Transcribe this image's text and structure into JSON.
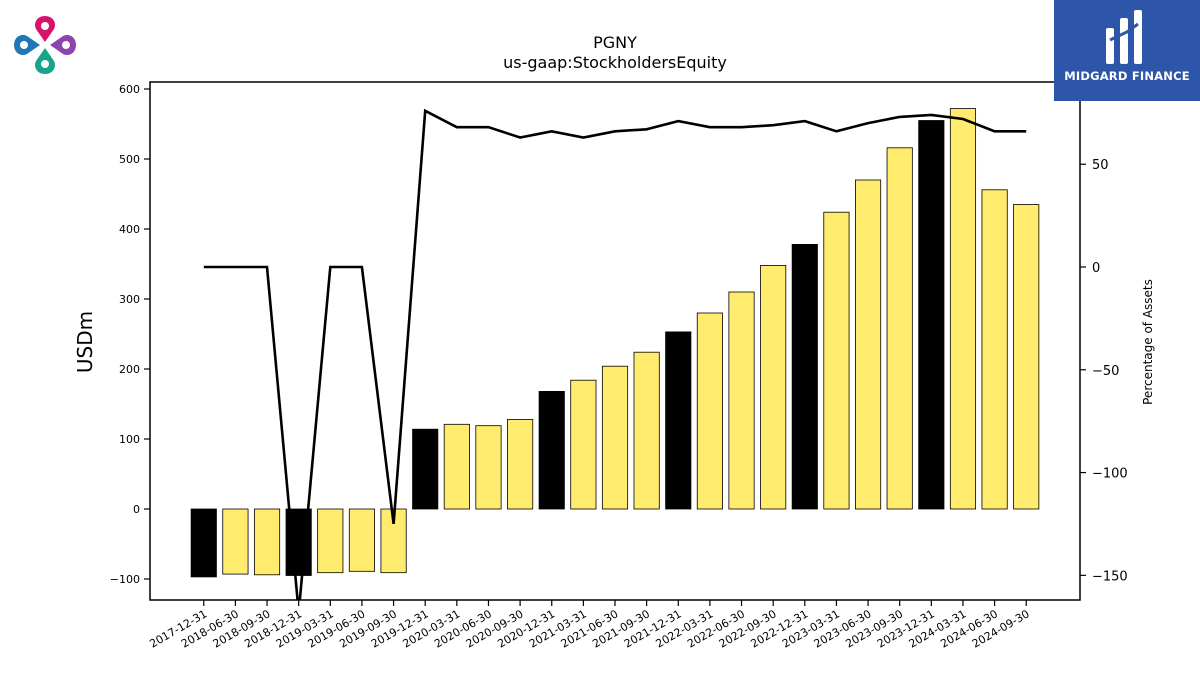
{
  "brand": {
    "name": "MIDGARD FINANCE",
    "colors": {
      "background": "#2d55a8",
      "mark": "#ffffff"
    }
  },
  "logo": {
    "name": "clover-logo",
    "colors": [
      "#d6146b",
      "#8e44ad",
      "#17a589",
      "#1f77b4"
    ]
  },
  "chart_data": {
    "type": "bar",
    "title": "PGNY",
    "subtitle": "us-gaap:StockholdersEquity",
    "ylabel": "USDm",
    "y2label": "Percentage of Assets",
    "ylim": [
      -130,
      610
    ],
    "y2lim": [
      -162,
      90
    ],
    "yticks": [
      -100,
      0,
      100,
      200,
      300,
      400,
      500,
      600
    ],
    "y2ticks": [
      -150,
      -100,
      -50,
      0,
      50
    ],
    "categories": [
      "2017-12-31",
      "2018-06-30",
      "2018-09-30",
      "2018-12-31",
      "2019-03-31",
      "2019-06-30",
      "2019-09-30",
      "2019-12-31",
      "2020-03-31",
      "2020-06-30",
      "2020-09-30",
      "2020-12-31",
      "2021-03-31",
      "2021-06-30",
      "2021-09-30",
      "2021-12-31",
      "2022-03-31",
      "2022-06-30",
      "2022-09-30",
      "2022-12-31",
      "2023-03-31",
      "2023-06-30",
      "2023-09-30",
      "2023-12-31",
      "2024-03-31",
      "2024-06-30",
      "2024-09-30"
    ],
    "series": [
      {
        "kind": "bar",
        "values": [
          -97,
          -93,
          -94,
          -95,
          -91,
          -89,
          -91,
          114,
          121,
          119,
          128,
          168,
          184,
          204,
          224,
          253,
          280,
          310,
          348,
          378,
          424,
          470,
          516,
          555,
          572,
          456,
          435
        ],
        "highlight": [
          true,
          false,
          false,
          true,
          false,
          false,
          false,
          true,
          false,
          false,
          false,
          true,
          false,
          false,
          false,
          true,
          false,
          false,
          false,
          true,
          false,
          false,
          false,
          true,
          false,
          false,
          false
        ],
        "colors": {
          "normal": "#ffeb6e",
          "highlight": "#000000",
          "edge": "#000000"
        }
      },
      {
        "kind": "line",
        "axis": "right",
        "values": [
          0,
          0,
          0,
          -168,
          0,
          0,
          -125,
          76,
          68,
          68,
          63,
          66,
          63,
          66,
          67,
          71,
          68,
          68,
          69,
          71,
          66,
          70,
          73,
          74,
          72,
          66,
          66
        ],
        "color": "#000000"
      }
    ]
  }
}
